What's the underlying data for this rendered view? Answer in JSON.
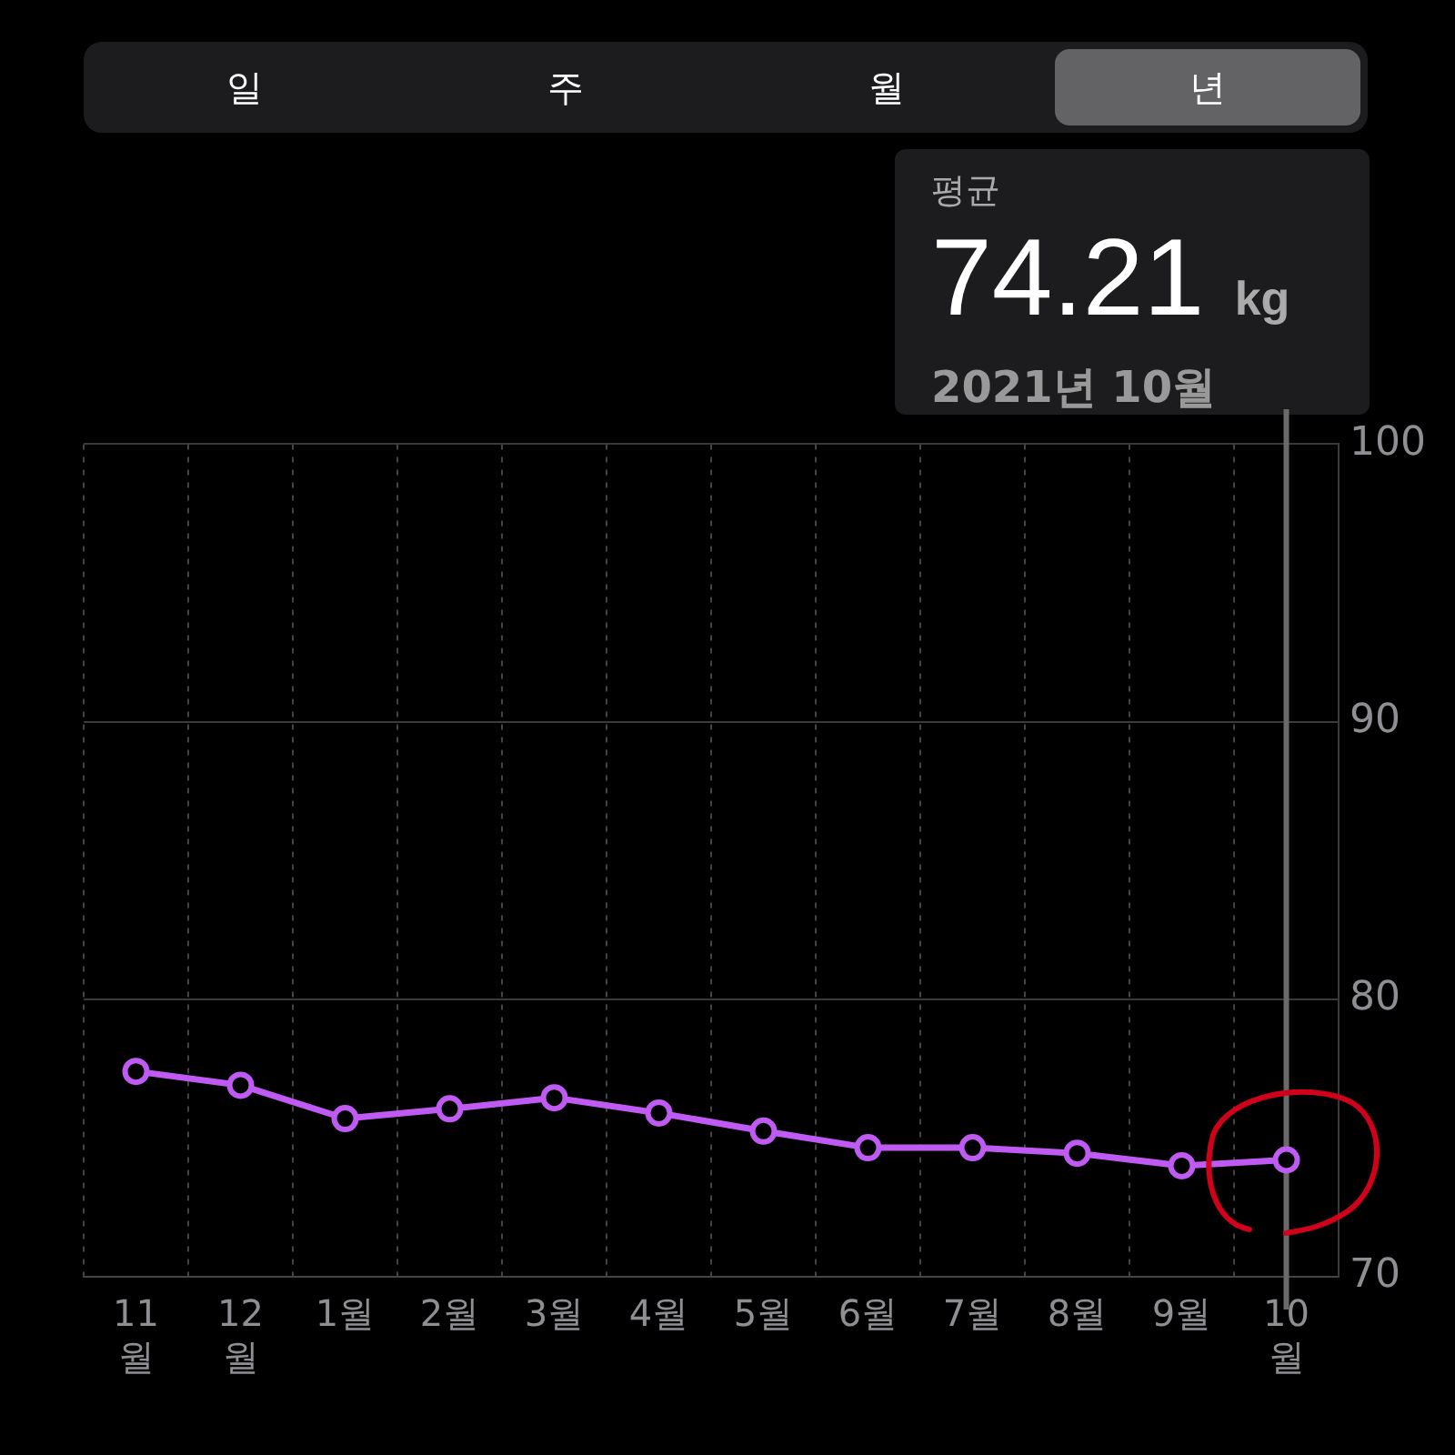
{
  "chart_data": {
    "type": "line",
    "title": "평균",
    "subtitle": "2021년 10월",
    "categories": [
      "11월",
      "12월",
      "1월",
      "2월",
      "3월",
      "4월",
      "5월",
      "6월",
      "7월",
      "8월",
      "9월",
      "10월"
    ],
    "series": [
      {
        "color": "#bf5af2",
        "values": [
          77.4,
          76.9,
          75.7,
          76.05,
          76.45,
          75.9,
          75.25,
          74.65,
          74.65,
          74.45,
          74.0,
          74.21
        ]
      }
    ],
    "ylim": [
      70,
      100
    ],
    "yticks": [
      70,
      80,
      90,
      100
    ],
    "grid": true,
    "legend": false,
    "marker": "circle",
    "line_style": "solid",
    "ref_lines": [
      {
        "axis": "x",
        "value": "10월",
        "color": "#6a6a6a"
      }
    ],
    "annotations": [
      "일",
      "주",
      "월",
      "년",
      "74.21 kg"
    ]
  }
}
